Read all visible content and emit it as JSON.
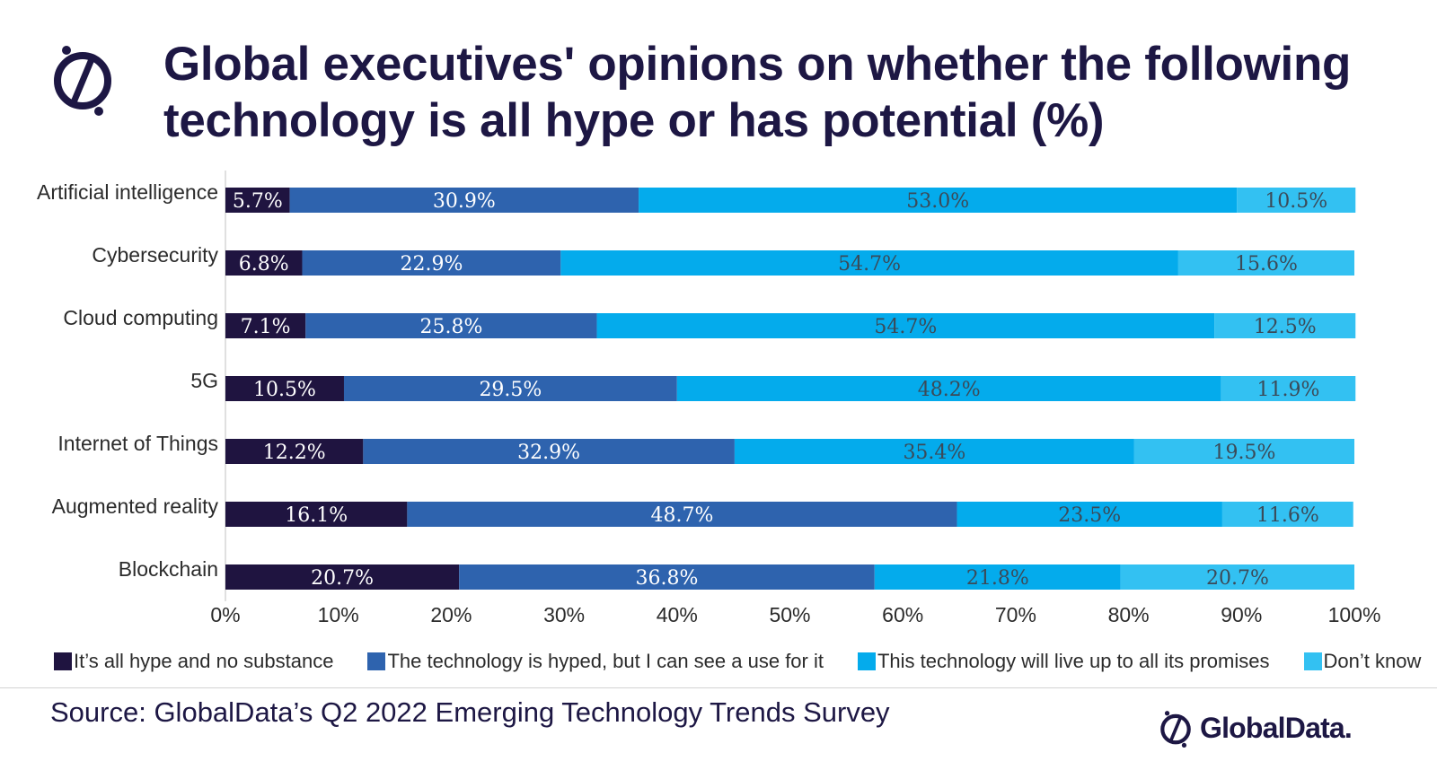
{
  "brand": {
    "name": "GlobalData.",
    "colors": {
      "primary": "#1d1744"
    }
  },
  "title": "Global executives' opinions on whether the following technology is all hype or has potential (%)",
  "source": "Source: GlobalData’s Q2 2022 Emerging Technology Trends Survey",
  "chart_data": {
    "type": "bar",
    "orientation": "horizontal",
    "stacked": true,
    "categories": [
      "Artificial intelligence",
      "Cybersecurity",
      "Cloud computing",
      "5G",
      "Internet of Things",
      "Augmented reality",
      "Blockchain"
    ],
    "series": [
      {
        "name": "It’s all hype and no substance",
        "color": "#1f1440",
        "label_color": "#ffffff",
        "values": [
          5.7,
          6.8,
          7.1,
          10.5,
          12.2,
          16.1,
          20.7
        ],
        "labels": [
          "5.7%",
          "6.8%",
          "7.1%",
          "10.5%",
          "12.2%",
          "16.1%",
          "20.7%"
        ]
      },
      {
        "name": "The technology is hyped, but I can see a use for it",
        "color": "#2e63ae",
        "label_color": "#ffffff",
        "values": [
          30.9,
          22.9,
          25.8,
          29.5,
          32.9,
          48.7,
          36.8
        ],
        "labels": [
          "30.9%",
          "22.9%",
          "25.8%",
          "29.5%",
          "32.9%",
          "48.7%",
          "36.8%"
        ]
      },
      {
        "name": "This technology will live up to all its promises",
        "color": "#04abec",
        "label_color": "#3b4a58",
        "values": [
          53.0,
          54.7,
          54.7,
          48.2,
          35.4,
          23.5,
          21.8
        ],
        "labels": [
          "53.0%",
          "54.7%",
          "54.7%",
          "48.2%",
          "35.4%",
          "23.5%",
          "21.8%"
        ]
      },
      {
        "name": "Don’t know",
        "color": "#33c1f2",
        "label_color": "#3b4a58",
        "values": [
          10.5,
          15.6,
          12.5,
          11.9,
          19.5,
          11.6,
          20.7
        ],
        "labels": [
          "10.5%",
          "15.6%",
          "12.5%",
          "11.9%",
          "19.5%",
          "11.6%",
          "20.7%"
        ]
      }
    ],
    "xlim": [
      0,
      100
    ],
    "xticks": [
      "0%",
      "10%",
      "20%",
      "30%",
      "40%",
      "50%",
      "60%",
      "70%",
      "80%",
      "90%",
      "100%"
    ],
    "xlabel": "",
    "ylabel": "",
    "grid": false,
    "legend": "bottom"
  }
}
